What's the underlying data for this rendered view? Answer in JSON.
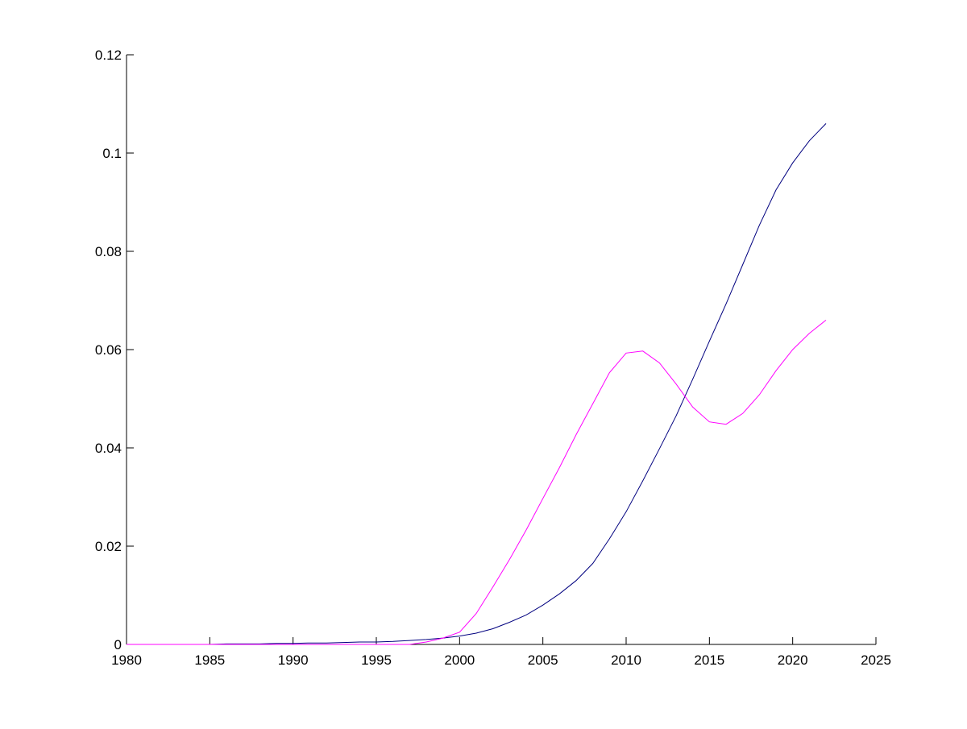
{
  "chart_data": {
    "type": "line",
    "title": "",
    "xlabel": "",
    "ylabel": "",
    "xlim": [
      1980,
      2025
    ],
    "ylim": [
      0,
      0.12
    ],
    "x_ticks": [
      1980,
      1985,
      1990,
      1995,
      2000,
      2005,
      2010,
      2015,
      2020,
      2025
    ],
    "x_tick_labels": [
      "1980",
      "1985",
      "1990",
      "1995",
      "2000",
      "2005",
      "2010",
      "2015",
      "2020",
      "2025"
    ],
    "y_ticks": [
      0,
      0.02,
      0.04,
      0.06,
      0.08,
      0.1,
      0.12
    ],
    "y_tick_labels": [
      "0",
      "0.02",
      "0.04",
      "0.06",
      "0.08",
      "0.1",
      "0.12"
    ],
    "grid": false,
    "legend": "none",
    "x": [
      1980,
      1981,
      1982,
      1983,
      1984,
      1985,
      1986,
      1987,
      1988,
      1989,
      1990,
      1991,
      1992,
      1993,
      1994,
      1995,
      1996,
      1997,
      1998,
      1999,
      2000,
      2001,
      2002,
      2003,
      2004,
      2005,
      2006,
      2007,
      2008,
      2009,
      2010,
      2011,
      2012,
      2013,
      2014,
      2015,
      2016,
      2017,
      2018,
      2019,
      2020,
      2021,
      2022
    ],
    "series": [
      {
        "color": "#00007f",
        "values": [
          0.0,
          0.0,
          0.0,
          0.0,
          0.0,
          0.0,
          0.0001,
          0.0001,
          0.0001,
          0.0002,
          0.0002,
          0.0003,
          0.0003,
          0.0004,
          0.0005,
          0.0005,
          0.0006,
          0.0008,
          0.001,
          0.0013,
          0.0017,
          0.0023,
          0.0032,
          0.0045,
          0.006,
          0.008,
          0.0103,
          0.013,
          0.0165,
          0.0215,
          0.027,
          0.0333,
          0.0398,
          0.0465,
          0.054,
          0.0617,
          0.0693,
          0.0773,
          0.0853,
          0.0925,
          0.098,
          0.1025,
          0.106
        ]
      },
      {
        "color": "#ff00ff",
        "values": [
          0.0,
          0.0,
          0.0,
          0.0,
          0.0,
          0.0,
          0.0,
          0.0,
          0.0,
          0.0,
          0.0,
          0.0,
          0.0,
          0.0,
          0.0,
          0.0,
          0.0,
          0.0,
          0.0005,
          0.0013,
          0.0025,
          0.0063,
          0.0117,
          0.0173,
          0.0233,
          0.0297,
          0.036,
          0.0427,
          0.049,
          0.0553,
          0.0593,
          0.0597,
          0.0573,
          0.053,
          0.0483,
          0.0453,
          0.0448,
          0.047,
          0.0508,
          0.0557,
          0.06,
          0.0633,
          0.066
        ]
      }
    ]
  }
}
